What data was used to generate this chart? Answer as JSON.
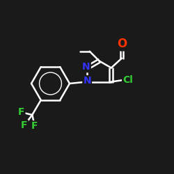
{
  "bg_color": "#1a1a1a",
  "bond_color": "#ffffff",
  "bond_width": 1.8,
  "atom_colors": {
    "N": "#3333ff",
    "O": "#ff3300",
    "Cl": "#33cc33",
    "F": "#33cc33",
    "C": "#ffffff"
  },
  "font_size_atom": 10,
  "font_size_small": 9,
  "xlim": [
    0,
    10
  ],
  "ylim": [
    0,
    10
  ]
}
